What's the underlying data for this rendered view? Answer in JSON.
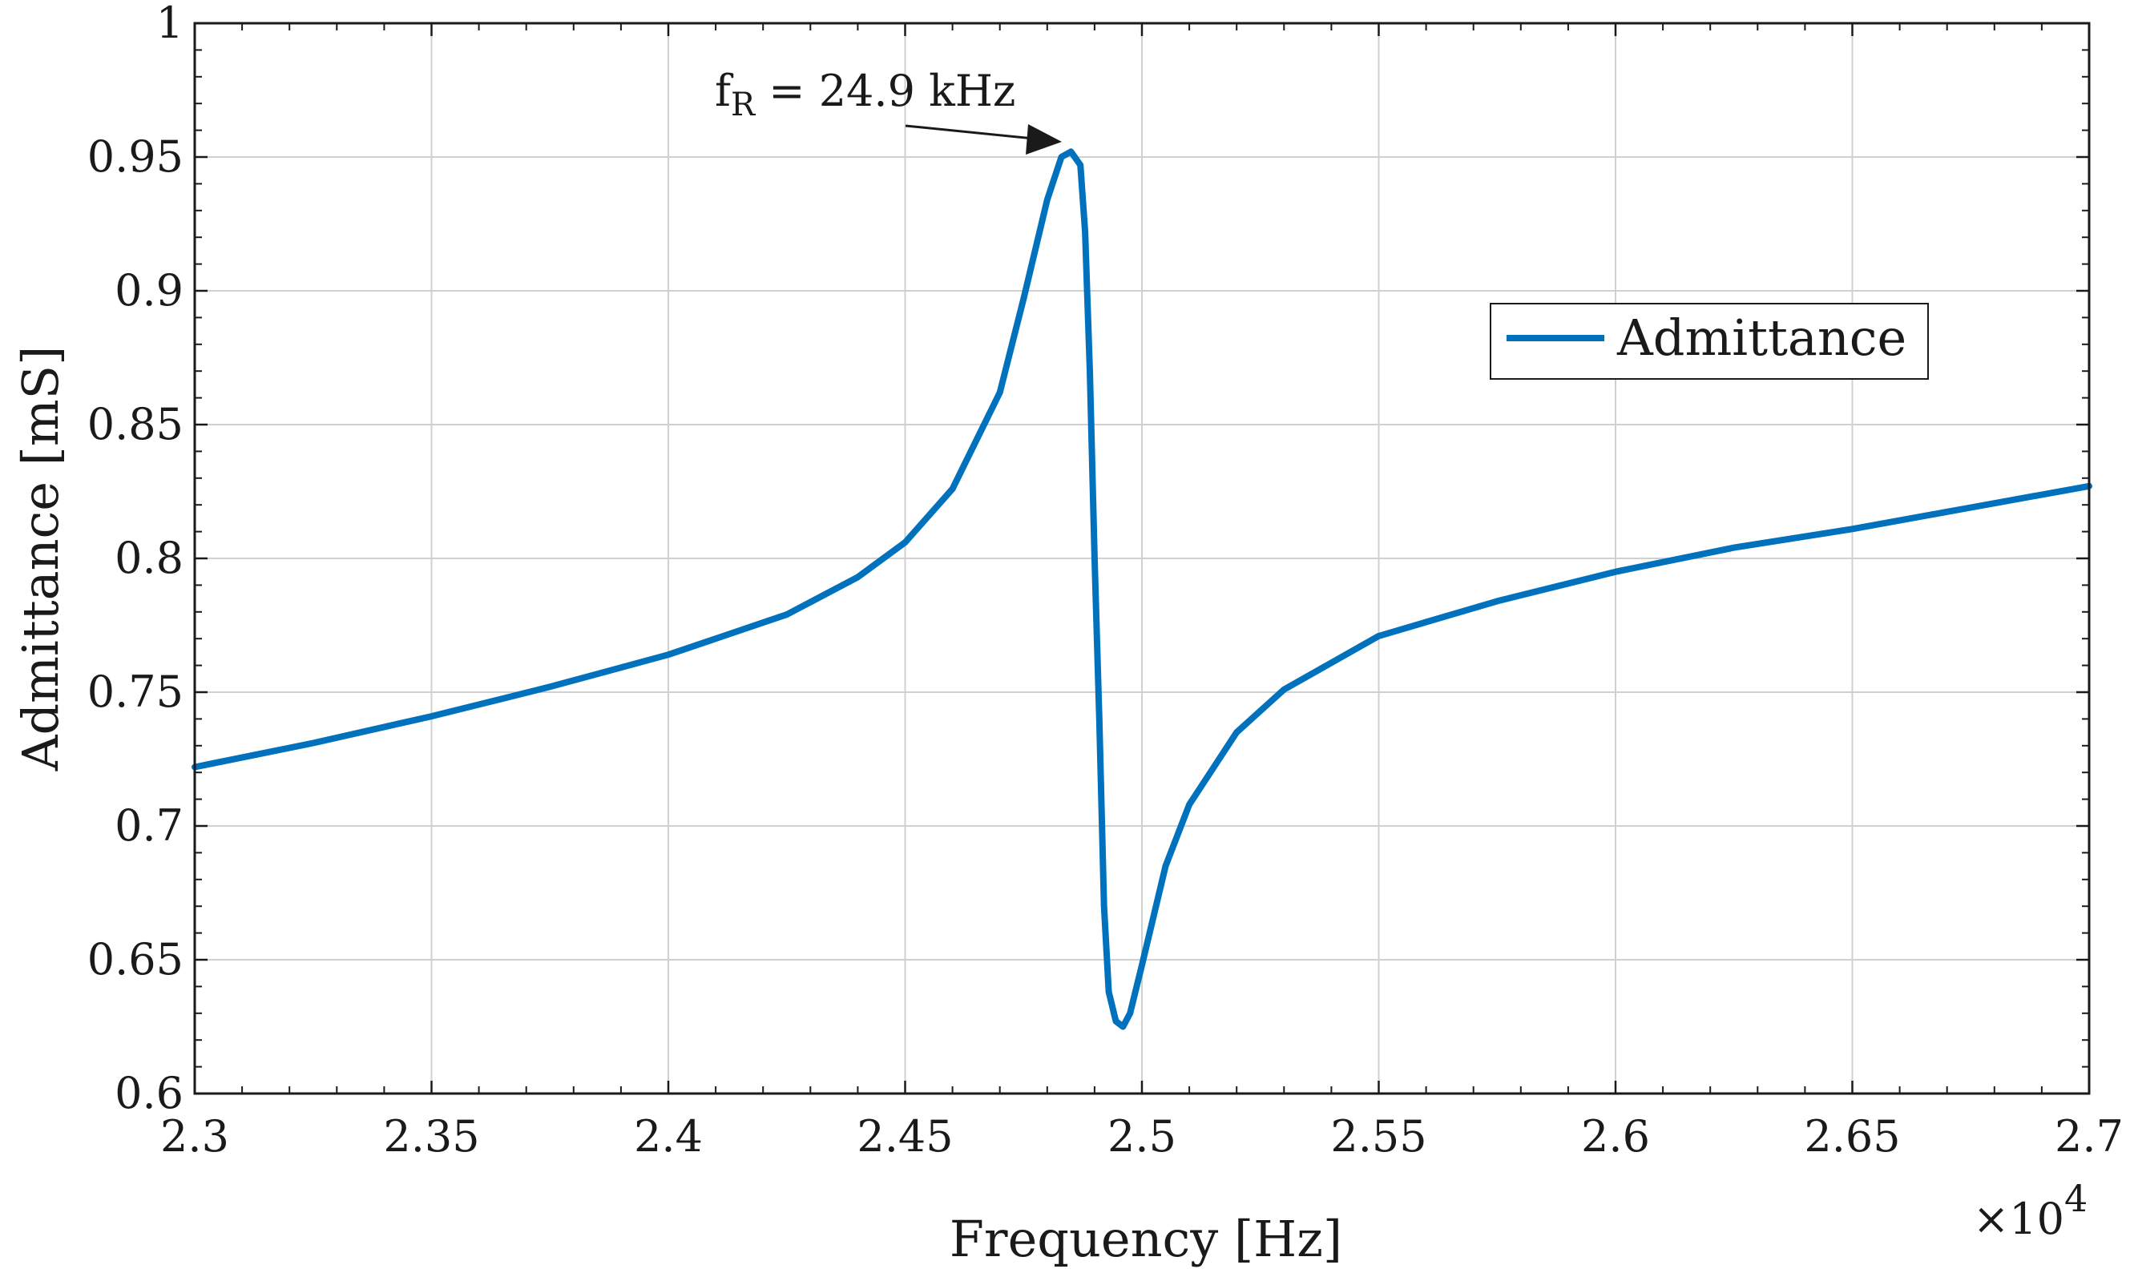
{
  "chart_data": {
    "type": "line",
    "title": "",
    "xlabel": "Frequency [Hz]",
    "ylabel": "Admittance [mS]",
    "x_multiplier_label": "×10",
    "x_multiplier_exponent": "4",
    "xlim": [
      23000,
      27000
    ],
    "ylim": [
      0.6,
      1.0
    ],
    "grid": true,
    "x_ticks": [
      23000,
      23500,
      24000,
      24500,
      25000,
      25500,
      26000,
      26500,
      27000
    ],
    "x_tick_labels": [
      "2.3",
      "2.35",
      "2.4",
      "2.45",
      "2.5",
      "2.55",
      "2.6",
      "2.65",
      "2.7"
    ],
    "y_ticks": [
      0.6,
      0.65,
      0.7,
      0.75,
      0.8,
      0.85,
      0.9,
      0.95,
      1.0
    ],
    "y_tick_labels": [
      "0.6",
      "0.65",
      "0.7",
      "0.75",
      "0.8",
      "0.85",
      "0.9",
      "0.95",
      "1"
    ],
    "legend": {
      "position": "upper-right",
      "entries": [
        "Admittance"
      ]
    },
    "annotation": {
      "text_main": "f",
      "text_sub": "R",
      "text_rest": " = 24.9 kHz",
      "target": [
        24850,
        0.952
      ]
    },
    "series": [
      {
        "name": "Admittance",
        "color": "#0072BD",
        "x": [
          23000,
          23250,
          23500,
          23750,
          24000,
          24250,
          24400,
          24500,
          24600,
          24700,
          24750,
          24800,
          24830,
          24850,
          24870,
          24880,
          24890,
          24900,
          24910,
          24920,
          24930,
          24945,
          24960,
          24975,
          25000,
          25050,
          25100,
          25200,
          25300,
          25500,
          25750,
          26000,
          26250,
          26500,
          26750,
          27000
        ],
        "values": [
          0.722,
          0.731,
          0.741,
          0.752,
          0.764,
          0.779,
          0.793,
          0.806,
          0.826,
          0.862,
          0.897,
          0.934,
          0.95,
          0.952,
          0.947,
          0.922,
          0.87,
          0.8,
          0.74,
          0.67,
          0.638,
          0.627,
          0.625,
          0.63,
          0.648,
          0.685,
          0.708,
          0.735,
          0.751,
          0.771,
          0.784,
          0.795,
          0.804,
          0.811,
          0.819,
          0.827
        ]
      }
    ]
  }
}
